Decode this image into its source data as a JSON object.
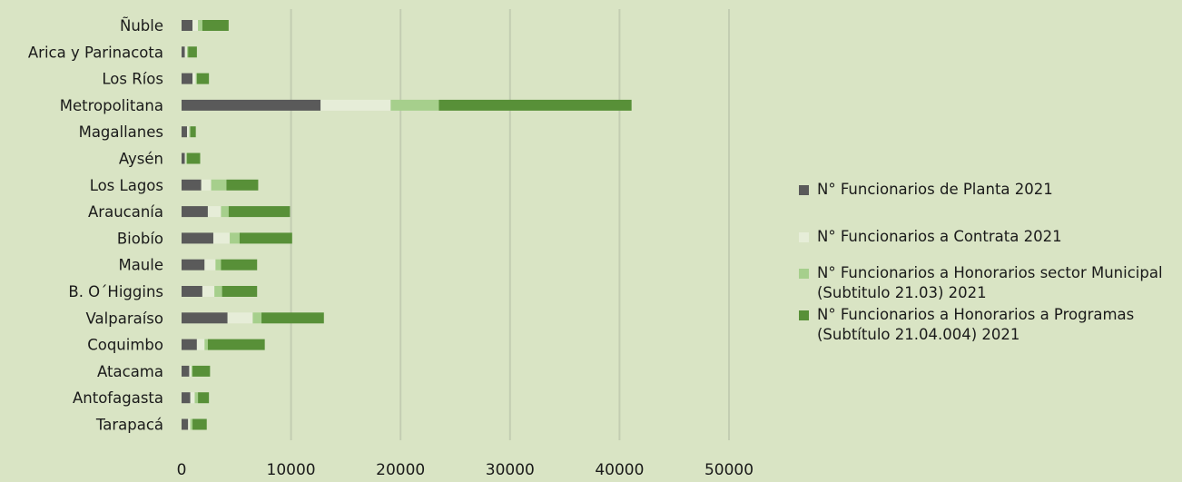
{
  "chart_data": {
    "type": "bar",
    "orientation": "horizontal",
    "stacked": true,
    "categories": [
      "Tarapacá",
      "Antofagasta",
      "Atacama",
      "Coquimbo",
      "Valparaíso",
      "B. O´Higgins",
      "Maule",
      "Biobío",
      "Araucanía",
      "Los Lagos",
      "Aysén",
      "Magallanes",
      "Metropolitana",
      "Los Ríos",
      "Arica y Parinacota",
      "Ñuble"
    ],
    "series": [
      {
        "name": "N° Funcionarios de Planta 2021",
        "color": "#5a5a5a",
        "values": [
          600,
          800,
          700,
          1400,
          4200,
          1900,
          2100,
          2900,
          2400,
          1800,
          300,
          500,
          12700,
          1000,
          300,
          1000
        ]
      },
      {
        "name": "N° Funcionarios a Contrata 2021",
        "color": "#e6edd8",
        "values": [
          200,
          400,
          200,
          700,
          2300,
          1100,
          1000,
          1500,
          1200,
          900,
          100,
          200,
          6400,
          300,
          200,
          500
        ]
      },
      {
        "name": "N° Funcionarios a Honorarios sector Municipal (Subtitulo 21.03) 2021",
        "color": "#a6cf8c",
        "values": [
          200,
          300,
          100,
          300,
          800,
          700,
          500,
          900,
          700,
          1400,
          100,
          100,
          4400,
          100,
          100,
          400
        ]
      },
      {
        "name": "N° Funcionarios a Honorarios a Programas (Subtítulo 21.04.004) 2021",
        "color": "#589038",
        "values": [
          1300,
          1000,
          1600,
          5200,
          5700,
          3200,
          3300,
          4800,
          5600,
          2900,
          1200,
          500,
          17600,
          1100,
          800,
          2400
        ]
      }
    ],
    "xlim": [
      0,
      50000
    ],
    "xticks": [
      "0",
      "10000",
      "20000",
      "30000",
      "40000",
      "50000"
    ],
    "grid": true,
    "legend_position": "right"
  }
}
